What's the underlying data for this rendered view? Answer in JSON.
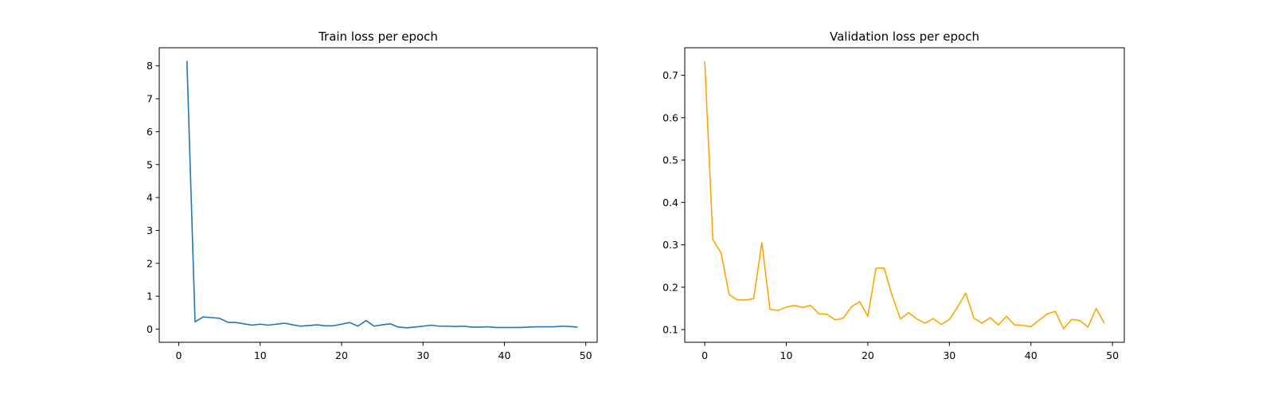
{
  "chart_data": [
    {
      "type": "line",
      "title": "Train loss per epoch",
      "xlabel": "",
      "ylabel": "",
      "xlim": [
        -2.4,
        51.4
      ],
      "ylim": [
        -0.4,
        8.55
      ],
      "xticks": [
        0,
        10,
        20,
        30,
        40,
        50
      ],
      "yticks": [
        0,
        1,
        2,
        3,
        4,
        5,
        6,
        7,
        8
      ],
      "grid": false,
      "color": "#1f77b4",
      "series": [
        {
          "x": [
            1,
            2,
            3,
            4,
            5,
            6,
            7,
            8,
            9,
            10,
            11,
            12,
            13,
            14,
            15,
            16,
            17,
            18,
            19,
            20,
            21,
            22,
            23,
            24,
            25,
            26,
            27,
            28,
            29,
            30,
            31,
            32,
            33,
            34,
            35,
            36,
            37,
            38,
            39,
            40,
            41,
            42,
            43,
            44,
            45,
            46,
            47,
            48,
            49
          ],
          "values": [
            8.15,
            0.22,
            0.37,
            0.35,
            0.33,
            0.21,
            0.2,
            0.16,
            0.12,
            0.15,
            0.12,
            0.15,
            0.18,
            0.13,
            0.09,
            0.11,
            0.13,
            0.1,
            0.1,
            0.15,
            0.2,
            0.09,
            0.26,
            0.09,
            0.13,
            0.16,
            0.06,
            0.04,
            0.06,
            0.09,
            0.12,
            0.09,
            0.09,
            0.08,
            0.09,
            0.06,
            0.06,
            0.07,
            0.05,
            0.05,
            0.05,
            0.05,
            0.06,
            0.07,
            0.07,
            0.07,
            0.09,
            0.08,
            0.06
          ]
        }
      ]
    },
    {
      "type": "line",
      "title": "Validation loss per epoch",
      "xlabel": "",
      "ylabel": "",
      "xlim": [
        -2.45,
        51.45
      ],
      "ylim": [
        0.07,
        0.765
      ],
      "xticks": [
        0,
        10,
        20,
        30,
        40,
        50
      ],
      "yticks": [
        0.1,
        0.2,
        0.3,
        0.4,
        0.5,
        0.6,
        0.7
      ],
      "grid": false,
      "color": "#ffa500",
      "series": [
        {
          "x": [
            0,
            1,
            2,
            3,
            4,
            5,
            6,
            7,
            8,
            9,
            10,
            11,
            12,
            13,
            14,
            15,
            16,
            17,
            18,
            19,
            20,
            21,
            22,
            23,
            24,
            25,
            26,
            27,
            28,
            29,
            30,
            31,
            32,
            33,
            34,
            35,
            36,
            37,
            38,
            39,
            40,
            41,
            42,
            43,
            44,
            45,
            46,
            47,
            48,
            49
          ],
          "values": [
            0.733,
            0.312,
            0.281,
            0.182,
            0.17,
            0.17,
            0.173,
            0.305,
            0.148,
            0.145,
            0.153,
            0.157,
            0.152,
            0.157,
            0.137,
            0.136,
            0.123,
            0.127,
            0.154,
            0.166,
            0.131,
            0.245,
            0.245,
            0.179,
            0.125,
            0.14,
            0.125,
            0.115,
            0.126,
            0.112,
            0.124,
            0.153,
            0.186,
            0.127,
            0.115,
            0.128,
            0.111,
            0.131,
            0.111,
            0.11,
            0.107,
            0.122,
            0.137,
            0.143,
            0.102,
            0.124,
            0.121,
            0.106,
            0.15,
            0.115
          ]
        }
      ]
    }
  ]
}
